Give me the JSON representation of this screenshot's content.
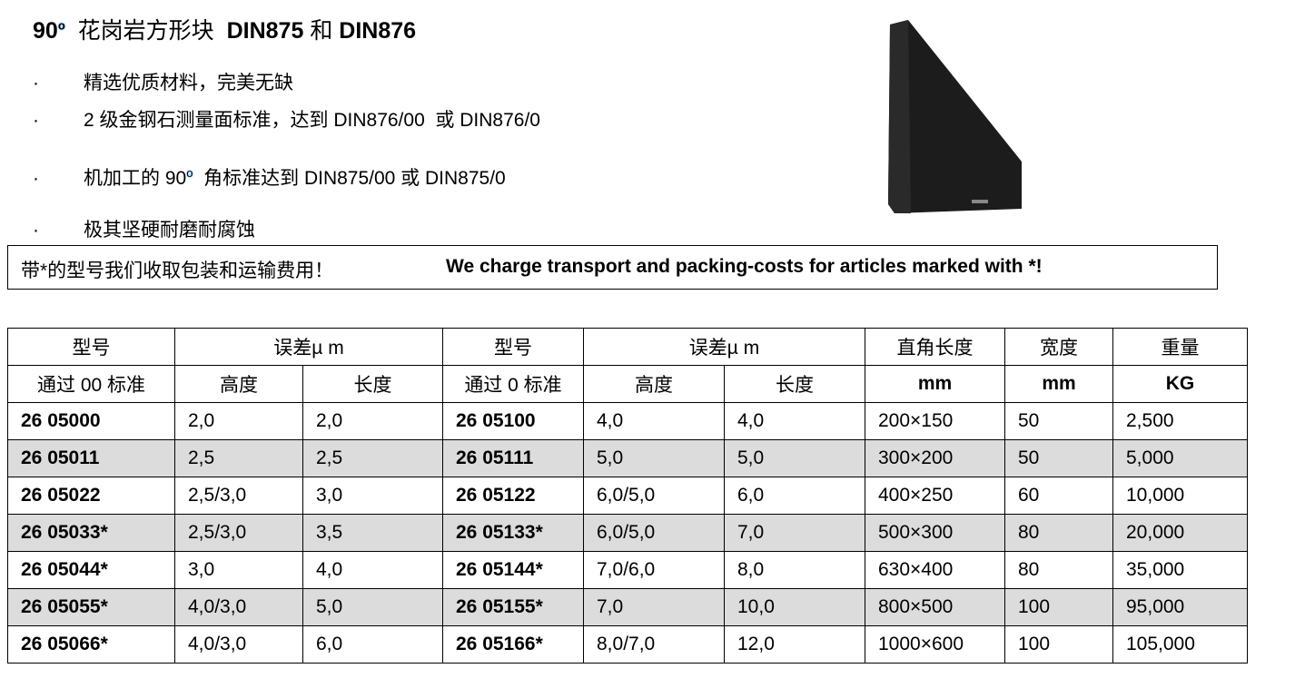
{
  "title": {
    "prefix": "90",
    "degree": "o",
    "cn": "花岗岩方形块",
    "mid": "DIN875",
    "and": "和",
    "end": "DIN876"
  },
  "bullets": [
    {
      "dot": "·",
      "text": "精选优质材料，完美无缺"
    },
    {
      "dot": "·",
      "text": "2 级金钢石测量面标准，达到 DIN876/00  或 DIN876/0"
    },
    {
      "dot": "·",
      "pre": "机加工的 90",
      "degree": "o",
      "post": "  角标准达到 DIN875/00 或 DIN875/0"
    },
    {
      "dot": "·",
      "text": "极其坚硬耐磨耐腐蚀"
    }
  ],
  "notice": {
    "cn": "带*的型号我们收取包装和运输费用！",
    "en": "We charge transport and packing-costs for articles marked with *!"
  },
  "product_image": {
    "color": "#1a1a1a"
  },
  "table": {
    "header1": [
      "型号",
      "误差µ m",
      "型号",
      "误差µ m",
      "直角长度",
      "宽度",
      "重量"
    ],
    "header2": [
      "通过  00 标准",
      "高度",
      "长度",
      "通过 0  标准",
      "高度",
      "长度",
      "mm",
      "mm",
      "KG"
    ],
    "rows": [
      [
        "26 05000",
        "2,0",
        "2,0",
        "26 05100",
        "4,0",
        "4,0",
        "200×150",
        "50",
        "2,500"
      ],
      [
        "26 05011",
        "2,5",
        "2,5",
        "26 05111",
        "5,0",
        "5,0",
        "300×200",
        "50",
        "5,000"
      ],
      [
        "26 05022",
        "2,5/3,0",
        "3,0",
        "26 05122",
        "6,0/5,0",
        "6,0",
        "400×250",
        "60",
        "10,000"
      ],
      [
        "26 05033*",
        "2,5/3,0",
        "3,5",
        "26 05133*",
        "6,0/5,0",
        "7,0",
        "500×300",
        "80",
        "20,000"
      ],
      [
        "26 05044*",
        "3,0",
        "4,0",
        "26 05144*",
        "7,0/6,0",
        "8,0",
        "630×400",
        "80",
        "35,000"
      ],
      [
        "26 05055*",
        "4,0/3,0",
        "5,0",
        "26 05155*",
        "7,0",
        "10,0",
        "800×500",
        "100",
        "95,000"
      ],
      [
        "26 05066*",
        "4,0/3,0",
        "6,0",
        "26 05166*",
        "8,0/7,0",
        "12,0",
        "1000×600",
        "100",
        "105,000"
      ]
    ]
  }
}
